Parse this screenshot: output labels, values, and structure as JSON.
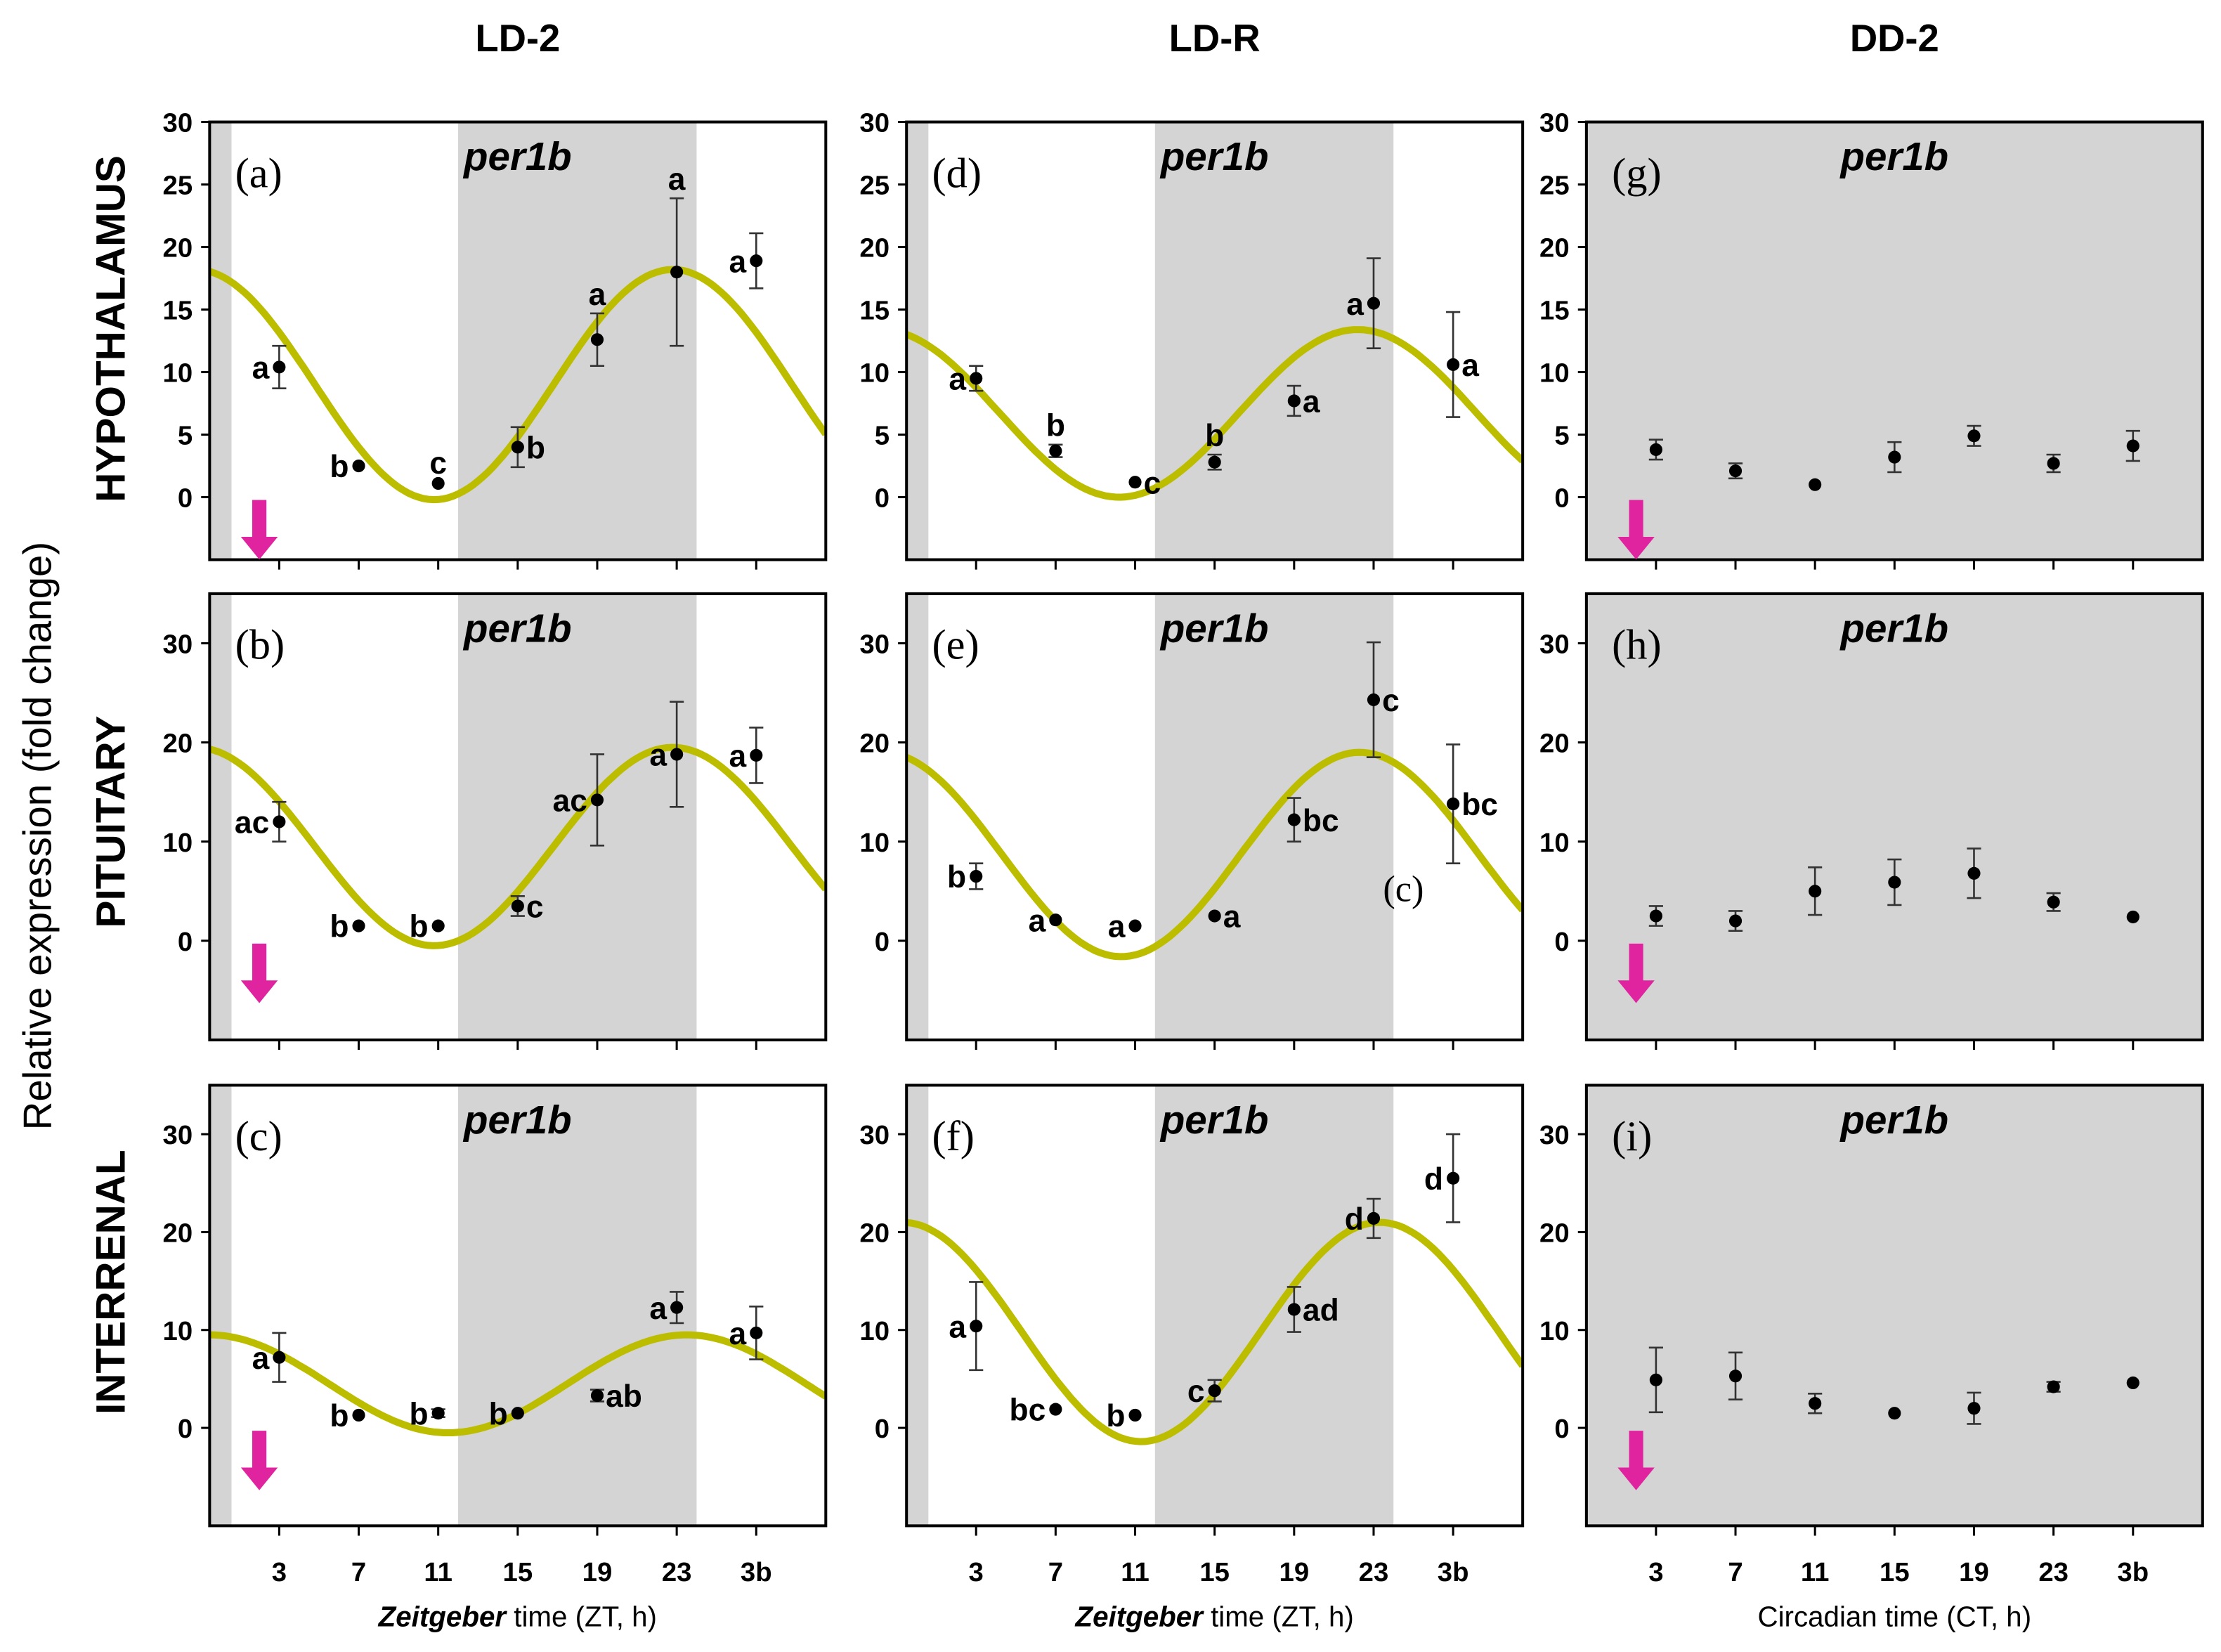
{
  "chart_data": {
    "type": "scatter",
    "title": "",
    "column_titles": [
      "LD-2",
      "LD-R",
      "DD-2"
    ],
    "row_titles": [
      "HYPOTHALAMUS",
      "PITUITARY",
      "INTERRENAL"
    ],
    "ylabel": "Relative expression (fold change)",
    "xlabels": [
      {
        "pre": "Zeitgeber",
        "post": " time (ZT, h)"
      },
      {
        "pre": "Zeitgeber",
        "post": " time (ZT, h)"
      },
      {
        "pre": "",
        "post": "Circadian time (CT, h)"
      }
    ],
    "xlim": [
      -0.5,
      30.5
    ],
    "x": [
      3,
      7,
      11,
      15,
      19,
      23,
      27
    ],
    "xtick_labels": [
      "3",
      "7",
      "11",
      "15",
      "19",
      "23",
      "3b"
    ],
    "colors": {
      "curve": "#bdbd00",
      "dark_phase": "#d4d4d4",
      "arrow": "#e0239f",
      "point": "#000000"
    },
    "panels": [
      {
        "label": "(a)",
        "gene": "per1b",
        "ylim": [
          -5,
          30
        ],
        "yticks": [
          0,
          5,
          10,
          15,
          20,
          25,
          30
        ],
        "dark": [
          [
            -0.5,
            0.6
          ],
          [
            12,
            24
          ]
        ],
        "arrow": true,
        "cosinor": {
          "mesor": 9.0,
          "amplitude": 9.2,
          "acrophase": 22.8
        },
        "points": [
          {
            "y": 10.4,
            "err": 1.7,
            "letter": "a",
            "pos": "left"
          },
          {
            "y": 2.5,
            "err": 0.2,
            "letter": "b",
            "pos": "left"
          },
          {
            "y": 1.1,
            "err": 0.1,
            "letter": "c",
            "pos": "above"
          },
          {
            "y": 4.0,
            "err": 1.6,
            "letter": "b",
            "pos": "right"
          },
          {
            "y": 12.6,
            "err": 2.1,
            "letter": "a",
            "pos": "above"
          },
          {
            "y": 18.0,
            "err": 5.9,
            "letter": "a",
            "pos": "above"
          },
          {
            "y": 18.9,
            "err": 2.2,
            "letter": "a",
            "pos": "left"
          }
        ]
      },
      {
        "label": "(d)",
        "gene": "per1b",
        "ylim": [
          -5,
          30
        ],
        "yticks": [
          0,
          5,
          10,
          15,
          20,
          25,
          30
        ],
        "dark": [
          [
            -0.5,
            0.6
          ],
          [
            12,
            24
          ]
        ],
        "arrow": false,
        "cosinor": {
          "mesor": 6.7,
          "amplitude": 6.7,
          "acrophase": 22.2
        },
        "points": [
          {
            "y": 9.5,
            "err": 1.0,
            "letter": "a",
            "pos": "left"
          },
          {
            "y": 3.7,
            "err": 0.5,
            "letter": "b",
            "pos": "above"
          },
          {
            "y": 1.2,
            "err": 0.1,
            "letter": "c",
            "pos": "right"
          },
          {
            "y": 2.8,
            "err": 0.6,
            "letter": "b",
            "pos": "above"
          },
          {
            "y": 7.7,
            "err": 1.2,
            "letter": "a",
            "pos": "right"
          },
          {
            "y": 15.5,
            "err": 3.6,
            "letter": "a",
            "pos": "left"
          },
          {
            "y": 10.6,
            "err": 4.2,
            "letter": "a",
            "pos": "right"
          }
        ]
      },
      {
        "label": "(g)",
        "gene": "per1b",
        "ylim": [
          -5,
          30
        ],
        "yticks": [
          0,
          5,
          10,
          15,
          20,
          25,
          30
        ],
        "dark": [
          [
            -0.5,
            30.5
          ]
        ],
        "arrow": true,
        "cosinor": null,
        "points": [
          {
            "y": 3.8,
            "err": 0.8,
            "letter": "",
            "pos": "left"
          },
          {
            "y": 2.1,
            "err": 0.6,
            "letter": "",
            "pos": "left"
          },
          {
            "y": 1.0,
            "err": 0.3,
            "letter": "",
            "pos": "left"
          },
          {
            "y": 3.2,
            "err": 1.2,
            "letter": "",
            "pos": "left"
          },
          {
            "y": 4.9,
            "err": 0.8,
            "letter": "",
            "pos": "left"
          },
          {
            "y": 2.7,
            "err": 0.7,
            "letter": "",
            "pos": "left"
          },
          {
            "y": 4.1,
            "err": 1.2,
            "letter": "",
            "pos": "left"
          }
        ]
      },
      {
        "label": "(b)",
        "gene": "per1b",
        "ylim": [
          -10,
          35
        ],
        "yticks": [
          0,
          10,
          20,
          30
        ],
        "dark": [
          [
            -0.5,
            0.6
          ],
          [
            12,
            24
          ]
        ],
        "arrow": true,
        "cosinor": {
          "mesor": 9.5,
          "amplitude": 10.0,
          "acrophase": 22.8
        },
        "points": [
          {
            "y": 12.0,
            "err": 2.0,
            "letter": "ac",
            "pos": "left"
          },
          {
            "y": 1.5,
            "err": 0.2,
            "letter": "b",
            "pos": "left"
          },
          {
            "y": 1.5,
            "err": 0.2,
            "letter": "b",
            "pos": "left"
          },
          {
            "y": 3.5,
            "err": 1.0,
            "letter": "c",
            "pos": "right"
          },
          {
            "y": 14.2,
            "err": 4.6,
            "letter": "ac",
            "pos": "left"
          },
          {
            "y": 18.8,
            "err": 5.3,
            "letter": "a",
            "pos": "left"
          },
          {
            "y": 18.7,
            "err": 2.8,
            "letter": "a",
            "pos": "left"
          }
        ]
      },
      {
        "label": "(e)",
        "gene": "per1b",
        "ylim": [
          -10,
          35
        ],
        "yticks": [
          0,
          10,
          20,
          30
        ],
        "dark": [
          [
            -0.5,
            0.6
          ],
          [
            12,
            24
          ]
        ],
        "arrow": false,
        "cosinor": {
          "mesor": 8.7,
          "amplitude": 10.3,
          "acrophase": 22.3
        },
        "annotations": [
          {
            "text": "(c)",
            "x": 24.5,
            "y": 4
          }
        ],
        "points": [
          {
            "y": 6.5,
            "err": 1.3,
            "letter": "b",
            "pos": "left"
          },
          {
            "y": 2.1,
            "err": 0.3,
            "letter": "a",
            "pos": "left"
          },
          {
            "y": 1.5,
            "err": 0.3,
            "letter": "a",
            "pos": "left"
          },
          {
            "y": 2.5,
            "err": 0.3,
            "letter": "a",
            "pos": "right"
          },
          {
            "y": 12.2,
            "err": 2.2,
            "letter": "bc",
            "pos": "right"
          },
          {
            "y": 24.3,
            "err": 5.8,
            "letter": "c",
            "pos": "right"
          },
          {
            "y": 13.8,
            "err": 6.0,
            "letter": "bc",
            "pos": "right"
          }
        ]
      },
      {
        "label": "(h)",
        "gene": "per1b",
        "ylim": [
          -10,
          35
        ],
        "yticks": [
          0,
          10,
          20,
          30
        ],
        "dark": [
          [
            -0.5,
            30.5
          ]
        ],
        "arrow": true,
        "cosinor": null,
        "points": [
          {
            "y": 2.5,
            "err": 1.0,
            "letter": "",
            "pos": "left"
          },
          {
            "y": 2.0,
            "err": 1.0,
            "letter": "",
            "pos": "left"
          },
          {
            "y": 5.0,
            "err": 2.4,
            "letter": "",
            "pos": "left"
          },
          {
            "y": 5.9,
            "err": 2.3,
            "letter": "",
            "pos": "left"
          },
          {
            "y": 6.8,
            "err": 2.5,
            "letter": "",
            "pos": "left"
          },
          {
            "y": 3.9,
            "err": 0.9,
            "letter": "",
            "pos": "left"
          },
          {
            "y": 2.4,
            "err": 0.3,
            "letter": "",
            "pos": "left"
          }
        ]
      },
      {
        "label": "(c)",
        "gene": "per1b",
        "ylim": [
          -10,
          35
        ],
        "yticks": [
          0,
          10,
          20,
          30
        ],
        "dark": [
          [
            -0.5,
            0.6
          ],
          [
            12,
            24
          ]
        ],
        "arrow": true,
        "cosinor": {
          "mesor": 4.5,
          "amplitude": 5.0,
          "acrophase": 23.5
        },
        "points": [
          {
            "y": 7.2,
            "err": 2.5,
            "letter": "a",
            "pos": "left"
          },
          {
            "y": 1.3,
            "err": 0.2,
            "letter": "b",
            "pos": "left"
          },
          {
            "y": 1.5,
            "err": 0.4,
            "letter": "b",
            "pos": "left"
          },
          {
            "y": 1.5,
            "err": 0.2,
            "letter": "b",
            "pos": "left"
          },
          {
            "y": 3.3,
            "err": 0.6,
            "letter": "ab",
            "pos": "right"
          },
          {
            "y": 12.3,
            "err": 1.6,
            "letter": "a",
            "pos": "left"
          },
          {
            "y": 9.7,
            "err": 2.7,
            "letter": "a",
            "pos": "left"
          }
        ]
      },
      {
        "label": "(f)",
        "gene": "per1b",
        "ylim": [
          -10,
          35
        ],
        "yticks": [
          0,
          10,
          20,
          30
        ],
        "dark": [
          [
            -0.5,
            0.6
          ],
          [
            12,
            24
          ]
        ],
        "arrow": false,
        "cosinor": {
          "mesor": 9.8,
          "amplitude": 11.2,
          "acrophase": 23.3
        },
        "points": [
          {
            "y": 10.4,
            "err": 4.5,
            "letter": "a",
            "pos": "left"
          },
          {
            "y": 1.9,
            "err": 0.2,
            "letter": "bc",
            "pos": "left"
          },
          {
            "y": 1.3,
            "err": 0.2,
            "letter": "b",
            "pos": "left"
          },
          {
            "y": 3.8,
            "err": 1.1,
            "letter": "c",
            "pos": "left"
          },
          {
            "y": 12.1,
            "err": 2.3,
            "letter": "ad",
            "pos": "right"
          },
          {
            "y": 21.4,
            "err": 2.0,
            "letter": "d",
            "pos": "left"
          },
          {
            "y": 25.5,
            "err": 4.5,
            "letter": "d",
            "pos": "left"
          }
        ]
      },
      {
        "label": "(i)",
        "gene": "per1b",
        "ylim": [
          -10,
          35
        ],
        "yticks": [
          0,
          10,
          20,
          30
        ],
        "dark": [
          [
            -0.5,
            30.5
          ]
        ],
        "arrow": true,
        "cosinor": null,
        "points": [
          {
            "y": 4.9,
            "err": 3.3,
            "letter": "",
            "pos": "left"
          },
          {
            "y": 5.3,
            "err": 2.4,
            "letter": "",
            "pos": "left"
          },
          {
            "y": 2.5,
            "err": 1.0,
            "letter": "",
            "pos": "left"
          },
          {
            "y": 1.5,
            "err": 0.3,
            "letter": "",
            "pos": "left"
          },
          {
            "y": 2.0,
            "err": 1.6,
            "letter": "",
            "pos": "left"
          },
          {
            "y": 4.2,
            "err": 0.5,
            "letter": "",
            "pos": "left"
          },
          {
            "y": 4.6,
            "err": 0.2,
            "letter": "",
            "pos": "left"
          }
        ]
      }
    ]
  }
}
